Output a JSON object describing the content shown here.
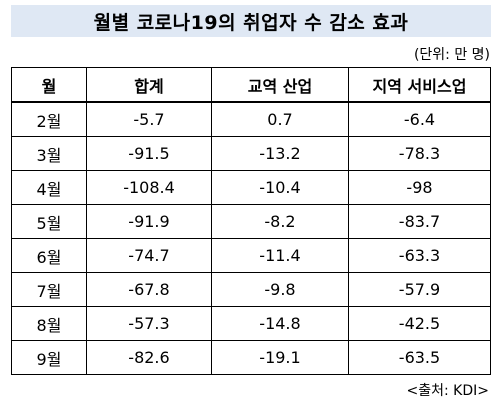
{
  "title": "월별 코로나19의 취업자 수 감소 효과",
  "unit_note": "(단위: 만 명)",
  "table": {
    "headers": [
      "월",
      "합계",
      "교역 산업",
      "지역 서비스업"
    ],
    "rows": [
      [
        "2월",
        "-5.7",
        "0.7",
        "-6.4"
      ],
      [
        "3월",
        "-91.5",
        "-13.2",
        "-78.3"
      ],
      [
        "4월",
        "-108.4",
        "-10.4",
        "-98"
      ],
      [
        "5월",
        "-91.9",
        "-8.2",
        "-83.7"
      ],
      [
        "6월",
        "-74.7",
        "-11.4",
        "-63.3"
      ],
      [
        "7월",
        "-67.8",
        "-9.8",
        "-57.9"
      ],
      [
        "8월",
        "-57.3",
        "-14.8",
        "-42.5"
      ],
      [
        "9월",
        "-82.6",
        "-19.1",
        "-63.5"
      ]
    ]
  },
  "source": "<출처: KDI>",
  "colors": {
    "title_background": "#dfe8f4",
    "border": "#000000"
  }
}
